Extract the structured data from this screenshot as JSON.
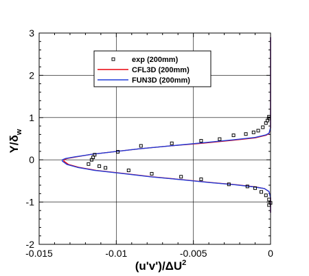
{
  "chart_data": {
    "type": "scatter",
    "xlabel": "(u'v')/ΔU",
    "xlabel_superscript": "2",
    "ylabel": "Y/δ",
    "ylabel_subscript": "w",
    "xlim": [
      -0.015,
      0
    ],
    "ylim": [
      -2,
      3
    ],
    "x_ticks": [
      -0.015,
      -0.01,
      -0.005,
      0
    ],
    "x_tick_labels": [
      "-0.015",
      "-0.01",
      "-0.005",
      "0"
    ],
    "y_ticks": [
      -2,
      -1,
      0,
      1,
      2,
      3
    ],
    "y_tick_labels": [
      "-2",
      "-1",
      "0",
      "1",
      "2",
      "3"
    ],
    "grid": true,
    "legend_position": "top-center",
    "series": [
      {
        "name": "exp (200mm)",
        "kind": "markers",
        "marker": "open-square",
        "color": "#000000",
        "x": [
          -0.0001,
          -0.0001,
          -0.0002,
          -0.0003,
          -0.0005,
          -0.0008,
          -0.0011,
          -0.0016,
          -0.0024,
          -0.0033,
          -0.0045,
          -0.0064,
          -0.0084,
          -0.0099,
          -0.0114,
          -0.0115,
          -0.0116,
          -0.0118,
          -0.0111,
          -0.0107,
          -0.0092,
          -0.0077,
          -0.0058,
          -0.0045,
          -0.0027,
          -0.0015,
          -0.001,
          -0.0006,
          -0.0003,
          -0.0001,
          0.0,
          -0.0001
        ],
        "y": [
          1.02,
          0.98,
          0.93,
          0.87,
          0.77,
          0.69,
          0.65,
          0.61,
          0.58,
          0.49,
          0.45,
          0.39,
          0.33,
          0.19,
          0.12,
          0.06,
          0.0,
          -0.1,
          -0.15,
          -0.19,
          -0.25,
          -0.33,
          -0.4,
          -0.46,
          -0.58,
          -0.63,
          -0.67,
          -0.76,
          -0.84,
          -0.94,
          -1.02,
          -1.07
        ]
      },
      {
        "name": "CFL3D (200mm)",
        "kind": "line",
        "color": "#e8000b",
        "x": [
          0,
          0,
          -0.0001,
          -0.0003,
          -0.001,
          -0.0025,
          -0.0045,
          -0.0065,
          -0.0085,
          -0.0102,
          -0.0116,
          -0.0126,
          -0.0132,
          -0.0134,
          -0.0134,
          -0.0131,
          -0.0124,
          -0.0113,
          -0.0096,
          -0.0077,
          -0.0057,
          -0.0038,
          -0.0022,
          -0.001,
          -0.0004,
          -0.0001,
          0,
          0
        ],
        "y": [
          2.9,
          0.75,
          0.62,
          0.58,
          0.52,
          0.46,
          0.39,
          0.33,
          0.26,
          0.19,
          0.13,
          0.07,
          0.03,
          0.0,
          -0.03,
          -0.11,
          -0.18,
          -0.25,
          -0.32,
          -0.4,
          -0.47,
          -0.54,
          -0.59,
          -0.64,
          -0.68,
          -0.75,
          -0.9,
          -1.25
        ]
      },
      {
        "name": "FUN3D (200mm)",
        "kind": "line",
        "color": "#1f3bd9",
        "x": [
          0,
          0,
          -0.0001,
          -0.0003,
          -0.001,
          -0.0025,
          -0.0045,
          -0.0065,
          -0.0085,
          -0.0102,
          -0.0116,
          -0.0127,
          -0.0133,
          -0.0135,
          -0.0135,
          -0.0132,
          -0.0125,
          -0.0114,
          -0.0097,
          -0.0078,
          -0.0058,
          -0.0039,
          -0.0023,
          -0.0011,
          -0.0004,
          -0.0001,
          0,
          0
        ],
        "y": [
          2.9,
          0.76,
          0.63,
          0.59,
          0.53,
          0.47,
          0.4,
          0.33,
          0.26,
          0.19,
          0.13,
          0.07,
          0.03,
          0.0,
          -0.03,
          -0.11,
          -0.18,
          -0.25,
          -0.32,
          -0.4,
          -0.47,
          -0.54,
          -0.59,
          -0.64,
          -0.68,
          -0.75,
          -0.9,
          -1.25
        ]
      }
    ]
  }
}
